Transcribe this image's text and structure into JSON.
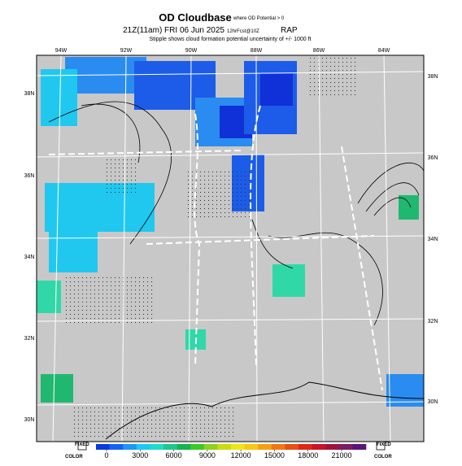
{
  "header": {
    "title": "OD Cloudbase",
    "title_note": "where OD Potential > 0",
    "valid_time": "21Z(11am) FRI 06 Jun 2025",
    "forecast": "12hrFcst@10Z",
    "model": "RAP",
    "stipple_note": "Stipple shows cloud formation potential uncertainty of +/- 1000 ft"
  },
  "map": {
    "lon_labels": [
      "94W",
      "92W",
      "90W",
      "88W",
      "86W",
      "84W"
    ],
    "lat_labels_left": [
      "38N",
      "36N",
      "34N",
      "32N",
      "30N"
    ],
    "lat_labels_right": [
      "38N",
      "36N",
      "34N",
      "32N",
      "30N"
    ]
  },
  "colorbar": {
    "left_label": [
      "FIXED",
      "COLOR"
    ],
    "right_label": [
      "FIXED",
      "COLOR"
    ],
    "ticks": [
      0,
      3000,
      6000,
      9000,
      12000,
      15000,
      18000,
      21000
    ]
  }
}
